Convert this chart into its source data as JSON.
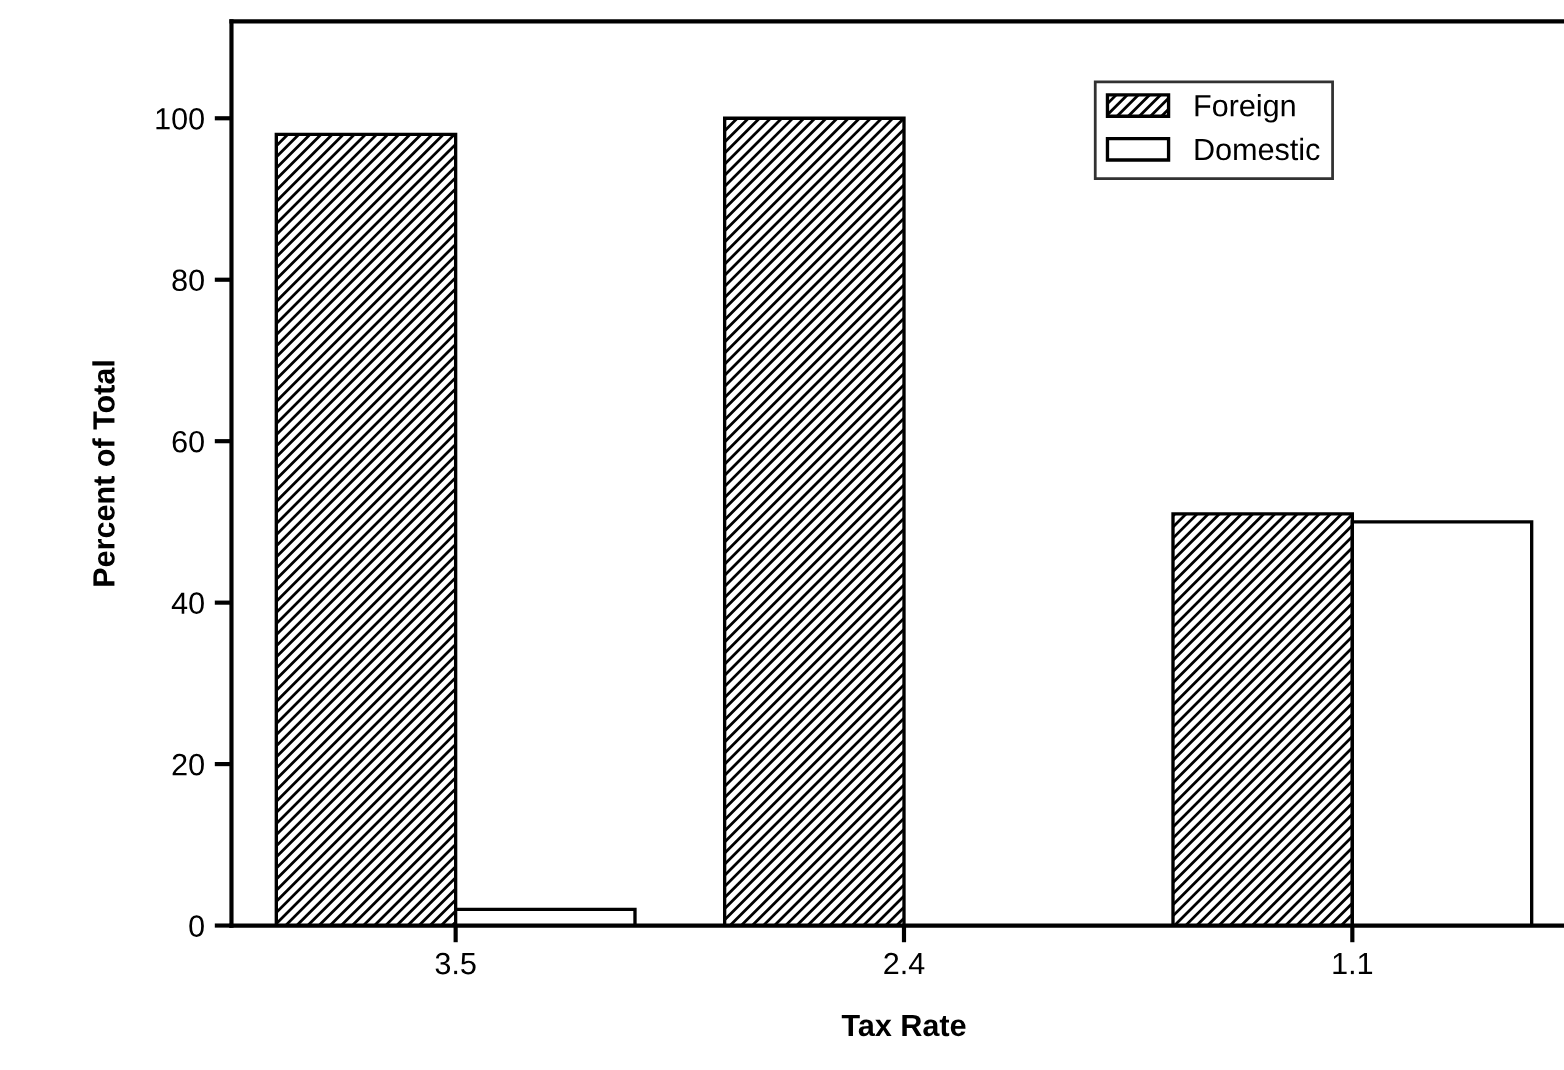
{
  "chart_data": {
    "type": "bar",
    "xlabel": "Tax Rate",
    "ylabel": "Percent of Total",
    "categories": [
      "3.5",
      "2.4",
      "1.1"
    ],
    "series": [
      {
        "name": "Foreign",
        "color": "#000000",
        "values": [
          98,
          100,
          51
        ]
      },
      {
        "name": "Domestic",
        "color": "#ffffff",
        "values": [
          2,
          0,
          50
        ]
      }
    ],
    "ylim": [
      0,
      112
    ],
    "yticks": [
      0,
      20,
      40,
      60,
      80,
      100
    ],
    "grid": false,
    "legend": "top right"
  }
}
